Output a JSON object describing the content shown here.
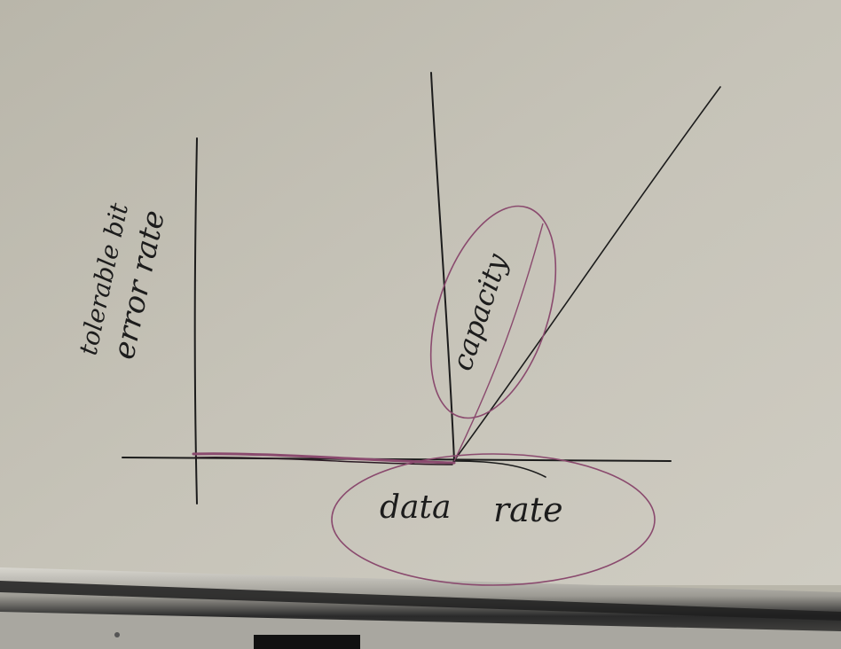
{
  "board": {
    "y_axis_label_line1": "tolerable bit",
    "y_axis_label_line2": "error rate",
    "capacity_label": "capacity",
    "x_label_word1": "data",
    "x_label_word2": "rate"
  },
  "colors": {
    "board": "#c4c1b6",
    "marker_black": "#1c1c1c",
    "marker_purple": "#8a4a6e",
    "tray": "#2a2a2a"
  },
  "icons": [
    "whiteboard",
    "marker-tray"
  ]
}
